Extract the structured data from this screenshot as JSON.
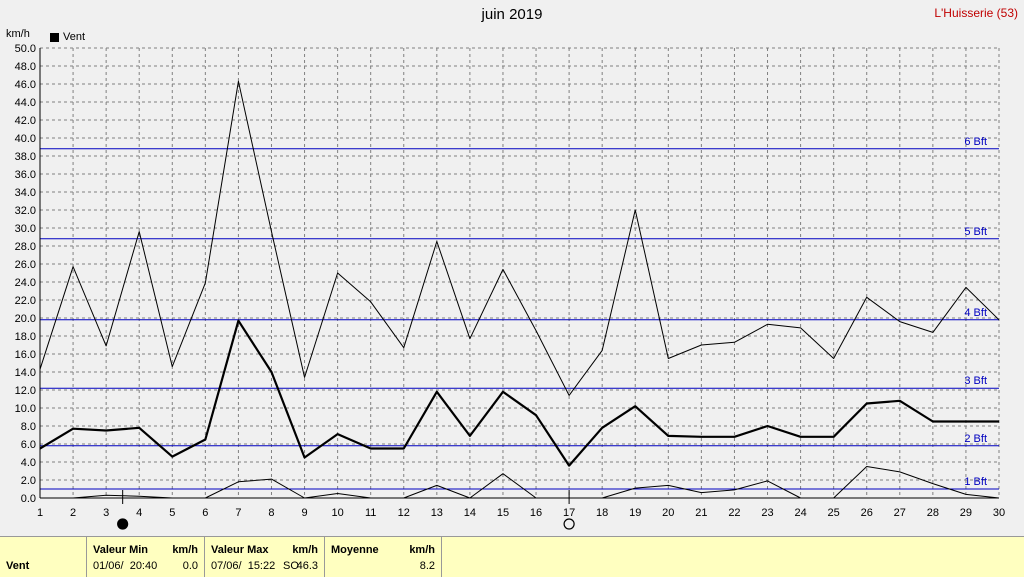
{
  "header": {
    "title": "juin 2019",
    "station": "L'Huisserie (53)",
    "unit": "km/h",
    "legend_label": "Vent"
  },
  "colors": {
    "background": "#f0f0f0",
    "grid": "#808080",
    "beaufort": "#0000c0",
    "series": "#000000",
    "footer": "#ffffc0"
  },
  "chart_data": {
    "type": "line",
    "title": "juin 2019",
    "ylabel": "km/h",
    "ylim": [
      0,
      50
    ],
    "xlim": [
      1,
      30
    ],
    "grid": true,
    "legend": "top-left",
    "y_ticks": [
      "0.0",
      "2.0",
      "4.0",
      "6.0",
      "8.0",
      "10.0",
      "12.0",
      "14.0",
      "16.0",
      "18.0",
      "20.0",
      "22.0",
      "24.0",
      "26.0",
      "28.0",
      "30.0",
      "32.0",
      "34.0",
      "36.0",
      "38.0",
      "40.0",
      "42.0",
      "44.0",
      "46.0",
      "48.0",
      "50.0"
    ],
    "x": [
      1,
      2,
      3,
      4,
      5,
      6,
      7,
      8,
      9,
      10,
      11,
      12,
      13,
      14,
      15,
      16,
      17,
      18,
      19,
      20,
      21,
      22,
      23,
      24,
      25,
      26,
      27,
      28,
      29,
      30
    ],
    "series": [
      {
        "name": "Vent",
        "role": "mean",
        "values": [
          5.5,
          7.7,
          7.5,
          7.8,
          4.6,
          6.5,
          19.7,
          14.0,
          4.5,
          7.1,
          5.5,
          5.5,
          11.8,
          6.9,
          11.8,
          9.2,
          3.6,
          7.8,
          10.2,
          6.9,
          6.8,
          6.8,
          8.0,
          6.8,
          6.8,
          10.5,
          10.8,
          8.5,
          8.5,
          8.5
        ]
      },
      {
        "role": "max",
        "values": [
          14.3,
          25.7,
          16.9,
          29.6,
          14.6,
          23.9,
          46.3,
          29.6,
          13.4,
          25.0,
          21.8,
          16.7,
          28.5,
          17.7,
          25.4,
          18.6,
          11.4,
          16.4,
          32.0,
          15.5,
          17.0,
          17.3,
          19.3,
          18.9,
          15.5,
          22.3,
          19.6,
          18.4,
          23.4,
          19.8
        ]
      },
      {
        "role": "min",
        "values": [
          0.0,
          0.0,
          0.3,
          0.2,
          0.0,
          0.0,
          1.8,
          2.1,
          0.0,
          0.5,
          0.0,
          0.0,
          1.4,
          0.0,
          2.7,
          0.0,
          0.0,
          0.0,
          1.1,
          1.4,
          0.6,
          0.9,
          1.9,
          0.0,
          0.0,
          3.5,
          2.9,
          1.6,
          0.4,
          0.0
        ]
      }
    ],
    "beaufort_lines": [
      {
        "label": "1 Bft",
        "value": 1.0
      },
      {
        "label": "2 Bft",
        "value": 5.8
      },
      {
        "label": "3 Bft",
        "value": 12.2
      },
      {
        "label": "4 Bft",
        "value": 19.8
      },
      {
        "label": "5 Bft",
        "value": 28.8
      },
      {
        "label": "6 Bft",
        "value": 38.8
      }
    ],
    "moon_phases": [
      {
        "day": 3.5,
        "phase": "new"
      },
      {
        "day": 17.0,
        "phase": "full"
      }
    ]
  },
  "footer": {
    "row_label": "Vent",
    "min_header": "Valeur Min",
    "min_unit": "km/h",
    "min_date": "01/06/  20:40",
    "min_value": "0.0",
    "max_header": "Valeur Max",
    "max_unit": "km/h",
    "max_date": "07/06/  15:22",
    "max_dir": "SO",
    "max_value": "46.3",
    "avg_header": "Moyenne",
    "avg_unit": "km/h",
    "avg_value": "8.2"
  }
}
